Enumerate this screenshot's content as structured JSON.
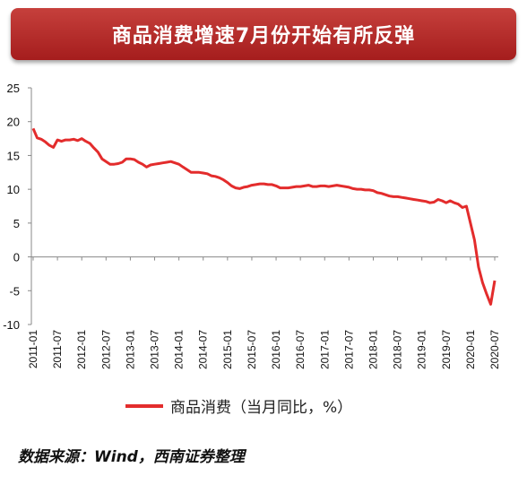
{
  "title": "商品消费增速7月份开始有所反弹",
  "legend_label": "商品消费（当月同比，%）",
  "source": "数据来源：Wind，西南证券整理",
  "colors": {
    "banner": "#b52a27",
    "line": "#e32c2c",
    "axis": "#888888"
  },
  "chart_data": {
    "type": "line",
    "ylim": [
      -10,
      25
    ],
    "yticks": [
      -10,
      -5,
      0,
      5,
      10,
      15,
      20,
      25
    ],
    "xticks": [
      "2011-01",
      "2011-07",
      "2012-01",
      "2012-07",
      "2013-01",
      "2013-07",
      "2014-01",
      "2014-07",
      "2015-01",
      "2015-07",
      "2016-01",
      "2016-07",
      "2017-01",
      "2017-07",
      "2018-01",
      "2018-07",
      "2019-01",
      "2019-07",
      "2020-01",
      "2020-07"
    ],
    "grid": false,
    "legend": "bottom",
    "series": [
      {
        "name": "商品消费（当月同比，%）",
        "points": [
          [
            "2011-01",
            19.0
          ],
          [
            "2011-02",
            17.6
          ],
          [
            "2011-03",
            17.4
          ],
          [
            "2011-04",
            17.0
          ],
          [
            "2011-05",
            16.5
          ],
          [
            "2011-06",
            16.2
          ],
          [
            "2011-07",
            17.3
          ],
          [
            "2011-08",
            17.1
          ],
          [
            "2011-09",
            17.3
          ],
          [
            "2011-10",
            17.3
          ],
          [
            "2011-11",
            17.4
          ],
          [
            "2011-12",
            17.2
          ],
          [
            "2012-01",
            17.5
          ],
          [
            "2012-02",
            17.1
          ],
          [
            "2012-03",
            16.8
          ],
          [
            "2012-04",
            16.1
          ],
          [
            "2012-05",
            15.5
          ],
          [
            "2012-06",
            14.5
          ],
          [
            "2012-07",
            14.1
          ],
          [
            "2012-08",
            13.7
          ],
          [
            "2012-09",
            13.7
          ],
          [
            "2012-10",
            13.8
          ],
          [
            "2012-11",
            14.0
          ],
          [
            "2012-12",
            14.5
          ],
          [
            "2013-01",
            14.5
          ],
          [
            "2013-02",
            14.4
          ],
          [
            "2013-03",
            14.0
          ],
          [
            "2013-04",
            13.7
          ],
          [
            "2013-05",
            13.3
          ],
          [
            "2013-06",
            13.6
          ],
          [
            "2013-07",
            13.7
          ],
          [
            "2013-08",
            13.8
          ],
          [
            "2013-09",
            13.9
          ],
          [
            "2013-10",
            14.0
          ],
          [
            "2013-11",
            14.1
          ],
          [
            "2013-12",
            13.9
          ],
          [
            "2014-01",
            13.7
          ],
          [
            "2014-02",
            13.3
          ],
          [
            "2014-03",
            12.9
          ],
          [
            "2014-04",
            12.5
          ],
          [
            "2014-05",
            12.5
          ],
          [
            "2014-06",
            12.5
          ],
          [
            "2014-07",
            12.4
          ],
          [
            "2014-08",
            12.3
          ],
          [
            "2014-09",
            12.0
          ],
          [
            "2014-10",
            11.9
          ],
          [
            "2014-11",
            11.7
          ],
          [
            "2014-12",
            11.4
          ],
          [
            "2015-01",
            11.0
          ],
          [
            "2015-02",
            10.5
          ],
          [
            "2015-03",
            10.2
          ],
          [
            "2015-04",
            10.1
          ],
          [
            "2015-05",
            10.3
          ],
          [
            "2015-06",
            10.4
          ],
          [
            "2015-07",
            10.6
          ],
          [
            "2015-08",
            10.7
          ],
          [
            "2015-09",
            10.8
          ],
          [
            "2015-10",
            10.8
          ],
          [
            "2015-11",
            10.7
          ],
          [
            "2015-12",
            10.7
          ],
          [
            "2016-01",
            10.5
          ],
          [
            "2016-02",
            10.2
          ],
          [
            "2016-03",
            10.2
          ],
          [
            "2016-04",
            10.2
          ],
          [
            "2016-05",
            10.3
          ],
          [
            "2016-06",
            10.4
          ],
          [
            "2016-07",
            10.4
          ],
          [
            "2016-08",
            10.5
          ],
          [
            "2016-09",
            10.6
          ],
          [
            "2016-10",
            10.4
          ],
          [
            "2016-11",
            10.4
          ],
          [
            "2016-12",
            10.5
          ],
          [
            "2017-01",
            10.5
          ],
          [
            "2017-02",
            10.4
          ],
          [
            "2017-03",
            10.5
          ],
          [
            "2017-04",
            10.6
          ],
          [
            "2017-05",
            10.5
          ],
          [
            "2017-06",
            10.4
          ],
          [
            "2017-07",
            10.3
          ],
          [
            "2017-08",
            10.1
          ],
          [
            "2017-09",
            10.0
          ],
          [
            "2017-10",
            10.0
          ],
          [
            "2017-11",
            9.9
          ],
          [
            "2017-12",
            9.9
          ],
          [
            "2018-01",
            9.8
          ],
          [
            "2018-02",
            9.5
          ],
          [
            "2018-03",
            9.4
          ],
          [
            "2018-04",
            9.2
          ],
          [
            "2018-05",
            9.0
          ],
          [
            "2018-06",
            8.9
          ],
          [
            "2018-07",
            8.9
          ],
          [
            "2018-08",
            8.8
          ],
          [
            "2018-09",
            8.7
          ],
          [
            "2018-10",
            8.6
          ],
          [
            "2018-11",
            8.5
          ],
          [
            "2018-12",
            8.4
          ],
          [
            "2019-01",
            8.3
          ],
          [
            "2019-02",
            8.2
          ],
          [
            "2019-03",
            8.0
          ],
          [
            "2019-04",
            8.1
          ],
          [
            "2019-05",
            8.5
          ],
          [
            "2019-06",
            8.3
          ],
          [
            "2019-07",
            8.0
          ],
          [
            "2019-08",
            8.3
          ],
          [
            "2019-09",
            8.0
          ],
          [
            "2019-10",
            7.8
          ],
          [
            "2019-11",
            7.3
          ],
          [
            "2019-12",
            7.5
          ],
          [
            "2020-01",
            5.0
          ],
          [
            "2020-02",
            2.5
          ],
          [
            "2020-03",
            -1.5
          ],
          [
            "2020-04",
            -3.8
          ],
          [
            "2020-05",
            -5.5
          ],
          [
            "2020-06",
            -7.0
          ],
          [
            "2020-07",
            -3.5
          ]
        ]
      }
    ]
  }
}
